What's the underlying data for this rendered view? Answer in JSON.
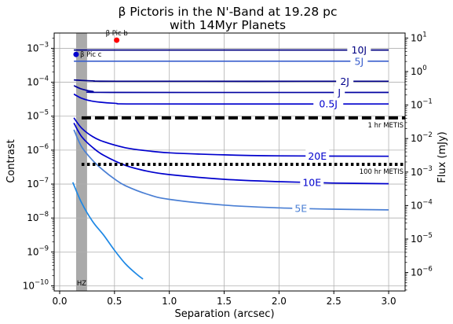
{
  "chart_data": {
    "type": "line",
    "title": [
      "β Pictoris in the N'-Band at 19.28 pc",
      "with 14Myr Planets"
    ],
    "xlabel": "Separation (arcsec)",
    "ylabel": "Contrast",
    "ylabel_right": "Flux (mJy)",
    "xlim": [
      -0.05,
      3.15
    ],
    "ylim_log10": [
      -10.15,
      -2.55
    ],
    "y2lim_log10": [
      -6.55,
      1.15
    ],
    "y_scale": "log",
    "y2_scale": "log",
    "grid": true,
    "x_ticks": [
      0.0,
      0.5,
      1.0,
      1.5,
      2.0,
      2.5,
      3.0
    ],
    "x_tick_labels": [
      "0.0",
      "0.5",
      "1.0",
      "1.5",
      "2.0",
      "2.5",
      "3.0"
    ],
    "y_ticks_log10": [
      -10,
      -9,
      -8,
      -7,
      -6,
      -5,
      -4,
      -3
    ],
    "y2_ticks_log10": [
      -6,
      -5,
      -4,
      -3,
      -2,
      -1,
      0,
      1
    ],
    "habitable_zone": {
      "label": "HZ",
      "x_range": [
        0.15,
        0.25
      ],
      "color": "#aaaaaa"
    },
    "series": [
      {
        "name": "10J",
        "color": "#000080",
        "label_x": 2.73,
        "points": [
          [
            0.13,
            -3.05
          ],
          [
            3.0,
            -3.05
          ]
        ]
      },
      {
        "name": "5J",
        "color": "#3a5fcd",
        "label_x": 2.73,
        "points": [
          [
            0.13,
            -3.38
          ],
          [
            3.0,
            -3.38
          ]
        ]
      },
      {
        "name": "2J",
        "color": "#00008b",
        "label_x": 2.6,
        "points": [
          [
            0.13,
            -3.93
          ],
          [
            0.3,
            -3.96
          ],
          [
            0.6,
            -3.97
          ],
          [
            3.0,
            -3.97
          ]
        ]
      },
      {
        "name": "J",
        "color": "#0000a0",
        "label_x": 2.55,
        "points": [
          [
            0.13,
            -4.1
          ],
          [
            0.2,
            -4.2
          ],
          [
            0.3,
            -4.27
          ],
          [
            0.5,
            -4.3
          ],
          [
            3.0,
            -4.3
          ]
        ]
      },
      {
        "name": "0.5J",
        "color": "#0000cd",
        "label_x": 2.45,
        "points": [
          [
            0.13,
            -4.35
          ],
          [
            0.2,
            -4.47
          ],
          [
            0.3,
            -4.56
          ],
          [
            0.5,
            -4.62
          ],
          [
            0.8,
            -4.64
          ],
          [
            3.0,
            -4.64
          ]
        ]
      },
      {
        "name": "20E",
        "color": "#0000cd",
        "label_x": 2.35,
        "points": [
          [
            0.13,
            -5.05
          ],
          [
            0.2,
            -5.35
          ],
          [
            0.3,
            -5.6
          ],
          [
            0.4,
            -5.75
          ],
          [
            0.6,
            -5.93
          ],
          [
            0.8,
            -6.02
          ],
          [
            1.0,
            -6.08
          ],
          [
            1.5,
            -6.14
          ],
          [
            2.0,
            -6.17
          ],
          [
            3.0,
            -6.18
          ]
        ]
      },
      {
        "name": "10E",
        "color": "#0000cd",
        "label_x": 2.3,
        "points": [
          [
            0.13,
            -5.2
          ],
          [
            0.2,
            -5.6
          ],
          [
            0.3,
            -5.92
          ],
          [
            0.4,
            -6.15
          ],
          [
            0.6,
            -6.45
          ],
          [
            0.8,
            -6.62
          ],
          [
            1.0,
            -6.72
          ],
          [
            1.5,
            -6.86
          ],
          [
            2.0,
            -6.93
          ],
          [
            2.5,
            -6.97
          ],
          [
            3.0,
            -6.99
          ]
        ]
      },
      {
        "name": "5E",
        "color": "#4a7fd4",
        "label_x": 2.2,
        "points": [
          [
            0.13,
            -5.4
          ],
          [
            0.2,
            -5.9
          ],
          [
            0.3,
            -6.3
          ],
          [
            0.4,
            -6.6
          ],
          [
            0.5,
            -6.85
          ],
          [
            0.6,
            -7.05
          ],
          [
            0.8,
            -7.3
          ],
          [
            1.0,
            -7.45
          ],
          [
            1.5,
            -7.62
          ],
          [
            2.0,
            -7.7
          ],
          [
            2.5,
            -7.74
          ],
          [
            3.0,
            -7.76
          ]
        ]
      },
      {
        "name": "",
        "color": "#1e88e5",
        "points": [
          [
            0.12,
            -6.95
          ],
          [
            0.2,
            -7.55
          ],
          [
            0.3,
            -8.1
          ],
          [
            0.4,
            -8.5
          ],
          [
            0.5,
            -8.95
          ],
          [
            0.6,
            -9.35
          ],
          [
            0.7,
            -9.65
          ],
          [
            0.76,
            -9.8
          ]
        ]
      }
    ],
    "contrast_limits": [
      {
        "label": "1 hr METIS",
        "log10_contrast": -5.05,
        "x_range": [
          0.2,
          3.15
        ],
        "style": "dashed"
      },
      {
        "label": "100 hr METIS",
        "log10_contrast": -6.42,
        "x_range": [
          0.2,
          3.15
        ],
        "style": "dotted"
      }
    ],
    "planets": [
      {
        "label": "β Pic b",
        "sep": 0.52,
        "log10_contrast": -2.76,
        "color": "#ff0000"
      },
      {
        "label": "β Pic c",
        "sep": 0.15,
        "log10_contrast": -3.18,
        "color": "#0000cd"
      }
    ]
  }
}
